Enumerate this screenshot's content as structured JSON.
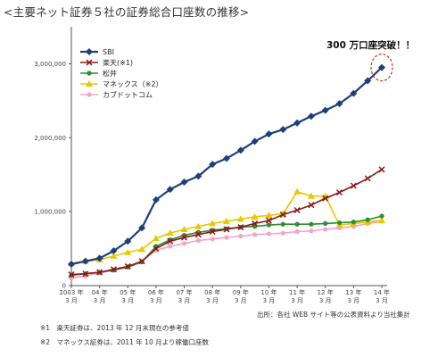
{
  "page_title": "<主要ネット証券５社の証券総合口座数の推移>",
  "annotation": "300 万口座突破！！",
  "source": "出所：各社 WEB サイト等の公表資料より当社集計",
  "notes": [
    "※1　楽天証券は、2013 年 12 月末現在の参考値",
    "※2　マネックス証券は、2011 年 10 月より稼働口座数"
  ],
  "chart_data": {
    "type": "line",
    "title": "",
    "xlabel": "",
    "ylabel": "",
    "ylim": [
      0,
      3500000
    ],
    "yticks": [
      0,
      1000000,
      2000000,
      3000000
    ],
    "ytick_labels": [
      "0",
      "1,000,000",
      "2,000,000",
      "3,000,000"
    ],
    "xtick_years": [
      "2003 年",
      "04 年",
      "05 年",
      "06 年",
      "07 年",
      "08 年",
      "09 年",
      "10 年",
      "11 年",
      "12 年",
      "13 年",
      "14 年"
    ],
    "xtick_month": "3 月",
    "x_ticks": [
      "2003-03",
      "2004-03",
      "2005-03",
      "2006-03",
      "2007-03",
      "2008-03",
      "2009-03",
      "2010-03",
      "2011-03",
      "2012-03",
      "2013-03",
      "2014-03"
    ],
    "x": [
      "2003-03",
      "2003-09",
      "2004-03",
      "2004-09",
      "2005-03",
      "2005-09",
      "2006-03",
      "2006-09",
      "2007-03",
      "2007-09",
      "2008-03",
      "2008-09",
      "2009-03",
      "2009-09",
      "2010-03",
      "2010-09",
      "2011-03",
      "2011-09",
      "2012-03",
      "2012-09",
      "2013-03",
      "2013-09",
      "2014-03"
    ],
    "legend_position": "top-left",
    "grid": false,
    "series": [
      {
        "name": "SBI",
        "color": "#1f3f7a",
        "marker": "diamond",
        "values": [
          290000,
          330000,
          370000,
          470000,
          600000,
          780000,
          1160000,
          1300000,
          1400000,
          1480000,
          1640000,
          1720000,
          1830000,
          1950000,
          2050000,
          2110000,
          2200000,
          2290000,
          2370000,
          2460000,
          2600000,
          2770000,
          2950000
        ]
      },
      {
        "name": "楽天(※1)",
        "color": "#8b1a1a",
        "marker": "x",
        "values": [
          150000,
          160000,
          180000,
          220000,
          260000,
          330000,
          500000,
          600000,
          650000,
          690000,
          730000,
          760000,
          790000,
          840000,
          880000,
          960000,
          1020000,
          1090000,
          1180000,
          1260000,
          1350000,
          1450000,
          1570000
        ]
      },
      {
        "name": "松井",
        "color": "#2e8b2e",
        "marker": "circle",
        "values": [
          140000,
          160000,
          180000,
          210000,
          250000,
          320000,
          530000,
          620000,
          680000,
          720000,
          750000,
          770000,
          790000,
          800000,
          820000,
          830000,
          830000,
          830000,
          840000,
          850000,
          860000,
          890000,
          940000
        ]
      },
      {
        "name": "マネックス（※2）",
        "color": "#e8c800",
        "marker": "triangle",
        "values": [
          300000,
          330000,
          350000,
          400000,
          450000,
          490000,
          640000,
          710000,
          760000,
          800000,
          840000,
          870000,
          900000,
          930000,
          950000,
          970000,
          1270000,
          1210000,
          1210000,
          820000,
          840000,
          860000,
          880000
        ]
      },
      {
        "name": "カブドットコム",
        "color": "#f4a3c8",
        "marker": "circle",
        "values": [
          100000,
          130000,
          170000,
          210000,
          260000,
          330000,
          480000,
          530000,
          570000,
          610000,
          630000,
          650000,
          670000,
          690000,
          700000,
          710000,
          730000,
          740000,
          760000,
          780000,
          800000,
          840000,
          870000
        ]
      }
    ]
  }
}
